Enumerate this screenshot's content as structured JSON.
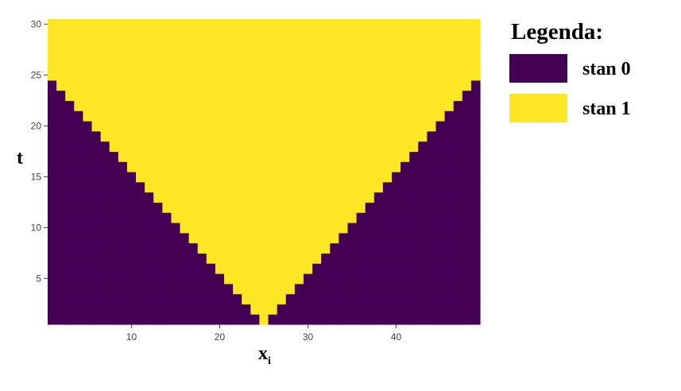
{
  "chart_data": {
    "type": "heatmap",
    "rule": "cellular automaton, V-shaped spread of state 1 from the center cell",
    "x": {
      "label": "x",
      "label_subscript": "i",
      "range": [
        1,
        49
      ],
      "ticks": [
        10,
        20,
        30,
        40
      ]
    },
    "y": {
      "label": "t",
      "range": [
        1,
        30
      ],
      "ticks": [
        5,
        10,
        15,
        20,
        25,
        30
      ]
    },
    "grid": false,
    "center_cell": 25,
    "full_row_from_t": 26,
    "legend": {
      "position": "right",
      "title": "Legenda:",
      "entries": [
        {
          "label": "stan 0",
          "state": 0,
          "color": "#440154"
        },
        {
          "label": "stan 1",
          "state": 1,
          "color": "#fde725"
        }
      ]
    },
    "rows": {
      "description": "for t=1..25 the cells with |x-25| <= t-1 are state 1, all others state 0; for t>=26 every cell is state 1",
      "state1_halfwidth_by_t": [
        0,
        1,
        2,
        3,
        4,
        5,
        6,
        7,
        8,
        9,
        10,
        11,
        12,
        13,
        14,
        15,
        16,
        17,
        18,
        19,
        20,
        21,
        22,
        23,
        24,
        24,
        24,
        24,
        24,
        24
      ]
    }
  }
}
